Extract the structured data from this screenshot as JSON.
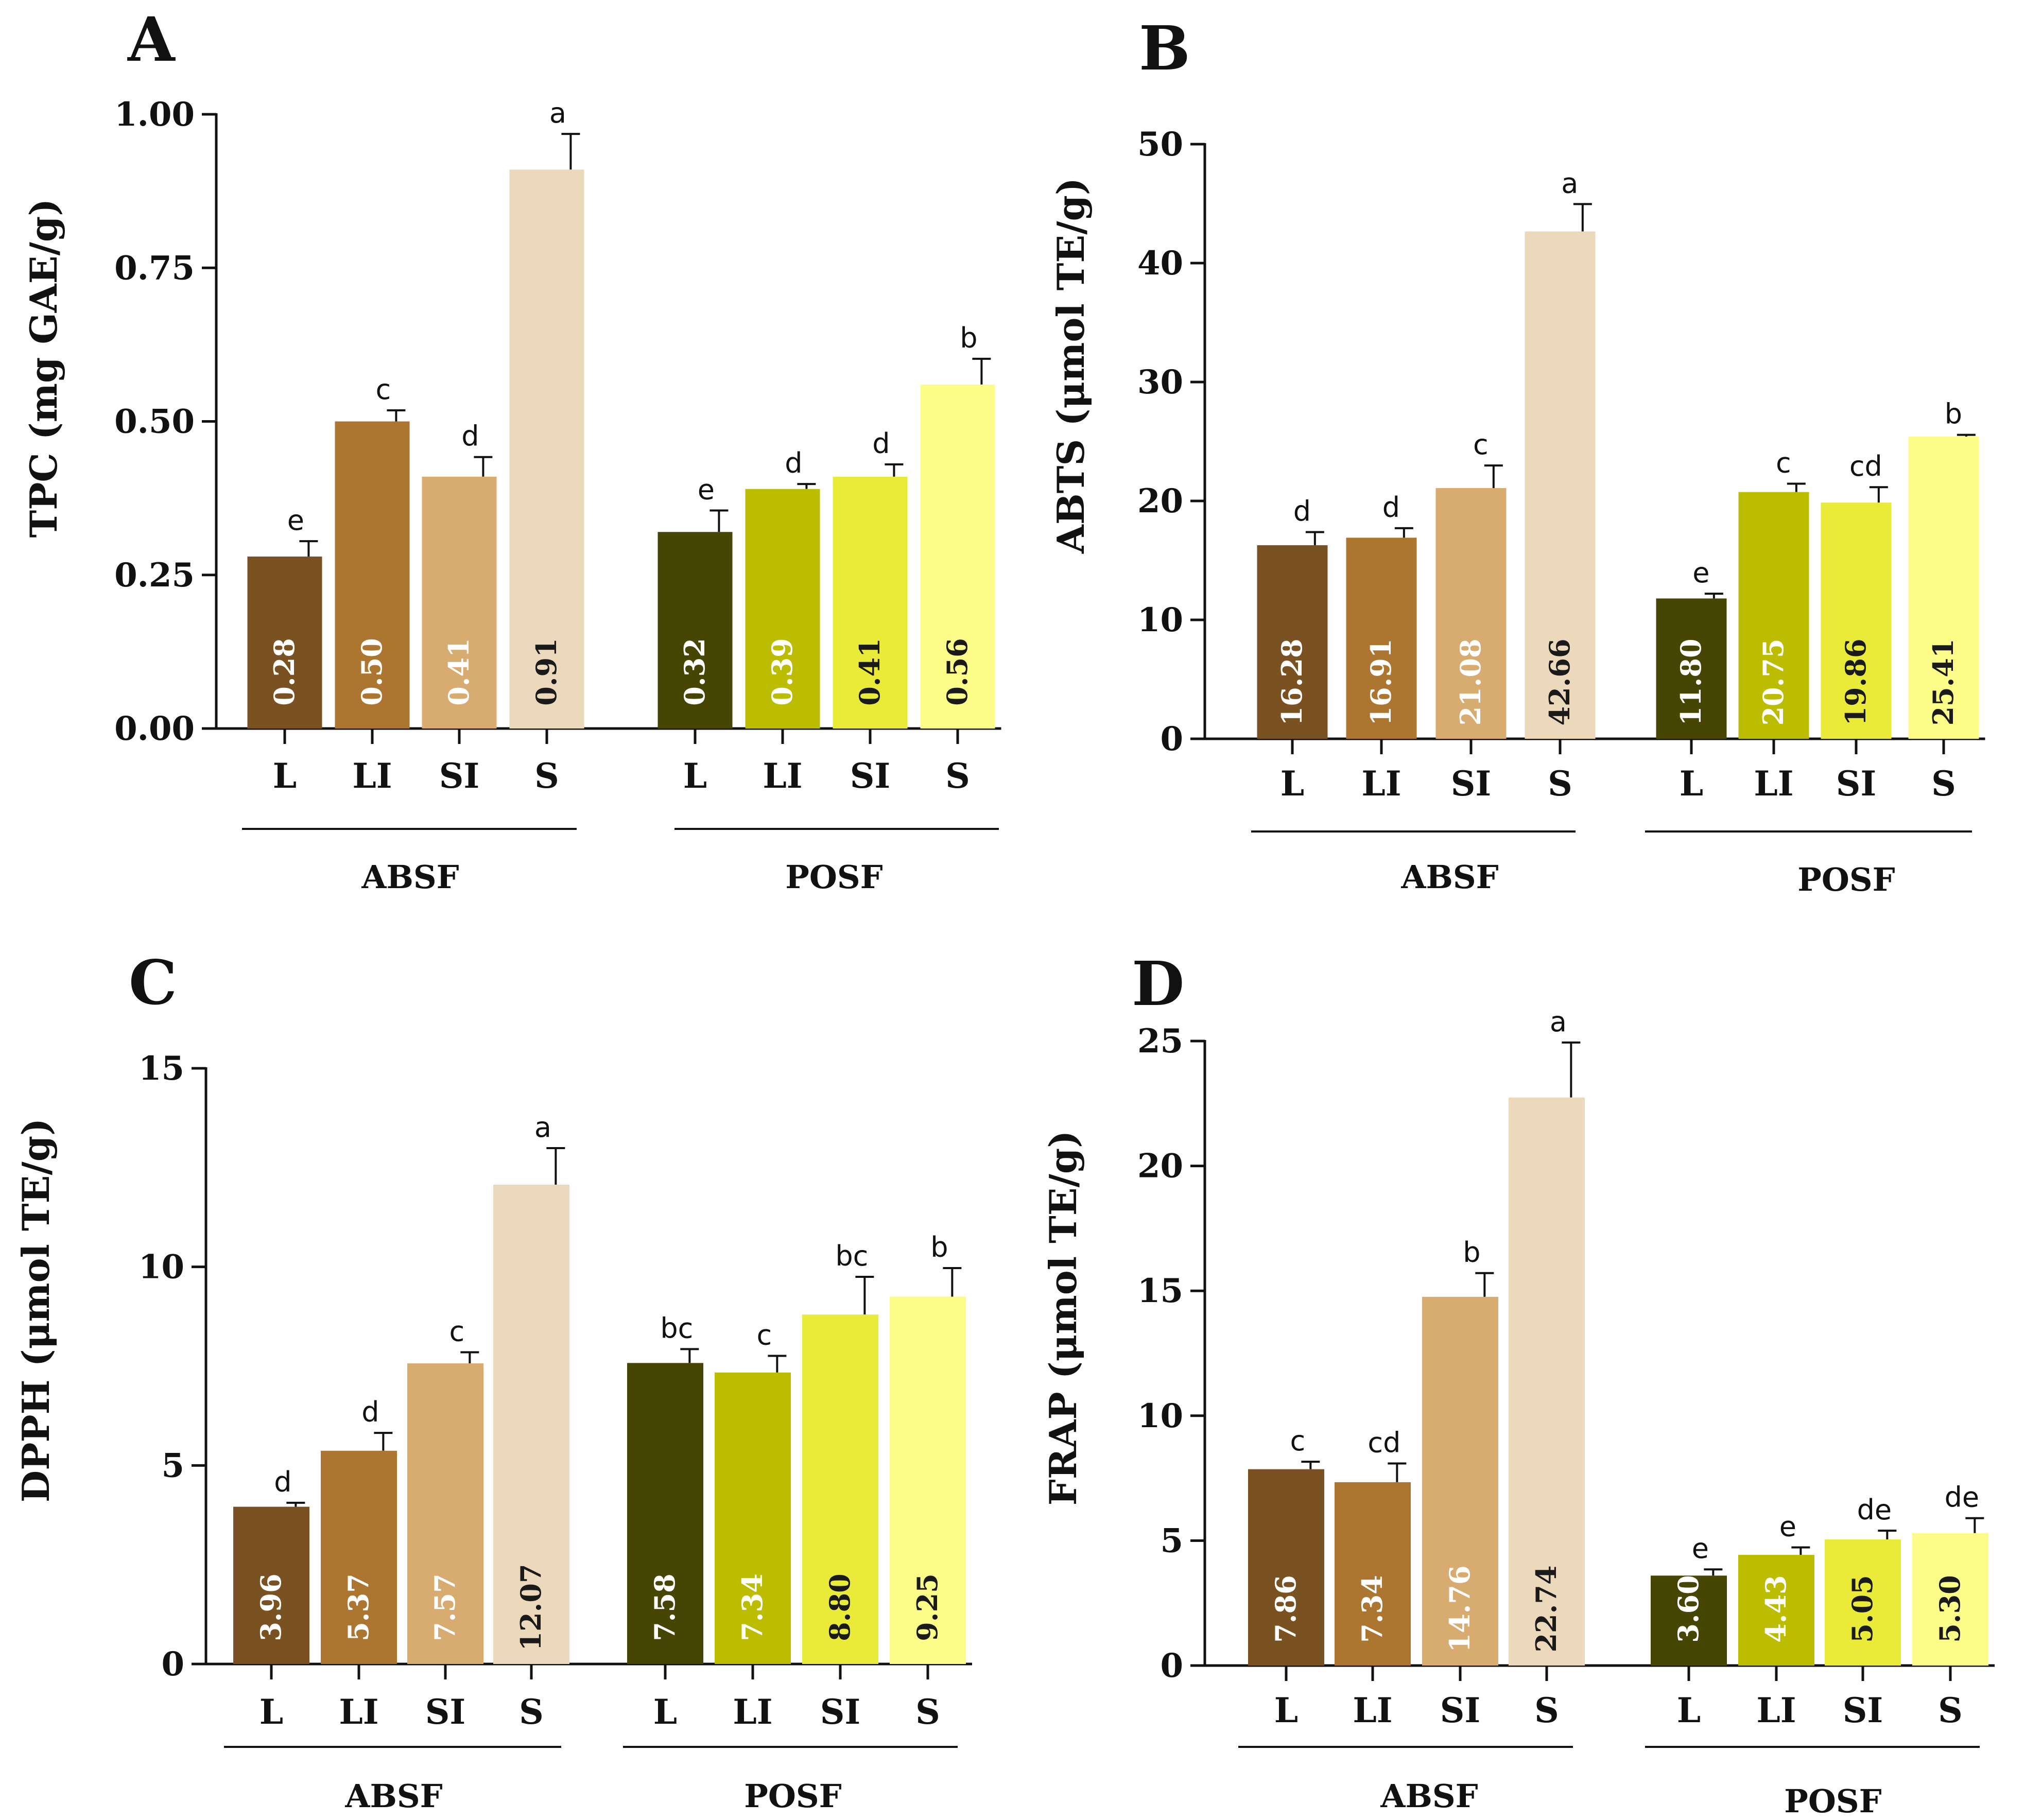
{
  "chart_data": [
    {
      "panel": "A",
      "type": "bar",
      "ylabel": "TPC (mg GAE/g)",
      "ylim": [
        0,
        1.0
      ],
      "yticks": [
        "0.00",
        "0.25",
        "0.50",
        "0.75",
        "1.00"
      ],
      "tick_values": [
        0,
        0.25,
        0.5,
        0.75,
        1.0
      ],
      "groups": [
        "ABSF",
        "POSF"
      ],
      "categories": [
        "L",
        "LI",
        "SI",
        "S"
      ],
      "series": [
        {
          "name": "ABSF",
          "values": [
            0.28,
            0.5,
            0.41,
            0.91
          ],
          "errors": [
            0.025,
            0.018,
            0.032,
            0.058
          ],
          "labels": [
            "0.28",
            "0.50",
            "0.41",
            "0.91"
          ],
          "letters": [
            "e",
            "c",
            "d",
            "a"
          ]
        },
        {
          "name": "POSF",
          "values": [
            0.32,
            0.39,
            0.41,
            0.56
          ],
          "errors": [
            0.035,
            0.008,
            0.02,
            0.042
          ],
          "labels": [
            "0.32",
            "0.39",
            "0.41",
            "0.56"
          ],
          "letters": [
            "e",
            "d",
            "d",
            "b"
          ]
        }
      ]
    },
    {
      "panel": "B",
      "type": "bar",
      "ylabel": "ABTS (μmol TE/g)",
      "ylim": [
        0,
        50
      ],
      "yticks": [
        "0",
        "10",
        "20",
        "30",
        "40",
        "50"
      ],
      "tick_values": [
        0,
        10,
        20,
        30,
        40,
        50
      ],
      "groups": [
        "ABSF",
        "POSF"
      ],
      "categories": [
        "L",
        "LI",
        "SI",
        "S"
      ],
      "series": [
        {
          "name": "ABSF",
          "values": [
            16.28,
            16.91,
            21.08,
            42.66
          ],
          "errors": [
            1.1,
            0.8,
            1.9,
            2.3
          ],
          "labels": [
            "16.28",
            "16.91",
            "21.08",
            "42.66"
          ],
          "letters": [
            "d",
            "d",
            "c",
            "a"
          ]
        },
        {
          "name": "POSF",
          "values": [
            11.8,
            20.75,
            19.86,
            25.41
          ],
          "errors": [
            0.4,
            0.7,
            1.3,
            0.15
          ],
          "labels": [
            "11.80",
            "20.75",
            "19.86",
            "25.41"
          ],
          "letters": [
            "e",
            "c",
            "cd",
            "b"
          ]
        }
      ]
    },
    {
      "panel": "C",
      "type": "bar",
      "ylabel": "DPPH (μmol TE/g)",
      "ylim": [
        0,
        15
      ],
      "yticks": [
        "0",
        "5",
        "10",
        "15"
      ],
      "tick_values": [
        0,
        5,
        10,
        15
      ],
      "groups": [
        "ABSF",
        "POSF"
      ],
      "categories": [
        "L",
        "LI",
        "SI",
        "S"
      ],
      "series": [
        {
          "name": "ABSF",
          "values": [
            3.96,
            5.37,
            7.57,
            12.07
          ],
          "errors": [
            0.1,
            0.45,
            0.28,
            0.92
          ],
          "labels": [
            "3.96",
            "5.37",
            "7.57",
            "12.07"
          ],
          "letters": [
            "d",
            "d",
            "c",
            "a"
          ]
        },
        {
          "name": "POSF",
          "values": [
            7.58,
            7.34,
            8.8,
            9.25
          ],
          "errors": [
            0.35,
            0.42,
            0.95,
            0.72
          ],
          "labels": [
            "7.58",
            "7.34",
            "8.80",
            "9.25"
          ],
          "letters": [
            "bc",
            "c",
            "bc",
            "b"
          ]
        }
      ]
    },
    {
      "panel": "D",
      "type": "bar",
      "ylabel": "FRAP (μmol TE/g)",
      "ylim": [
        0,
        25
      ],
      "yticks": [
        "0",
        "5",
        "10",
        "15",
        "20",
        "25"
      ],
      "tick_values": [
        0,
        5,
        10,
        15,
        20,
        25
      ],
      "groups": [
        "ABSF",
        "POSF"
      ],
      "categories": [
        "L",
        "LI",
        "SI",
        "S"
      ],
      "series": [
        {
          "name": "ABSF",
          "values": [
            7.86,
            7.34,
            14.76,
            22.74
          ],
          "errors": [
            0.3,
            0.75,
            0.95,
            2.2
          ],
          "labels": [
            "7.86",
            "7.34",
            "14.76",
            "22.74"
          ],
          "letters": [
            "c",
            "cd",
            "b",
            "a"
          ]
        },
        {
          "name": "POSF",
          "values": [
            3.6,
            4.43,
            5.05,
            5.3
          ],
          "errors": [
            0.25,
            0.3,
            0.35,
            0.6
          ],
          "labels": [
            "3.60",
            "4.43",
            "5.05",
            "5.30"
          ],
          "letters": [
            "e",
            "e",
            "de",
            "de"
          ]
        }
      ]
    }
  ],
  "colors": {
    "ABSF": [
      "#7a5222",
      "#ad7630",
      "#d8ab70",
      "#ecd9bc"
    ],
    "POSF": [
      "#464502",
      "#bcbc00",
      "#eaea38",
      "#fcfc88"
    ],
    "value_text_light": "#ffffff",
    "value_text_dark": "#1a1a1a",
    "axis": "#111111"
  }
}
